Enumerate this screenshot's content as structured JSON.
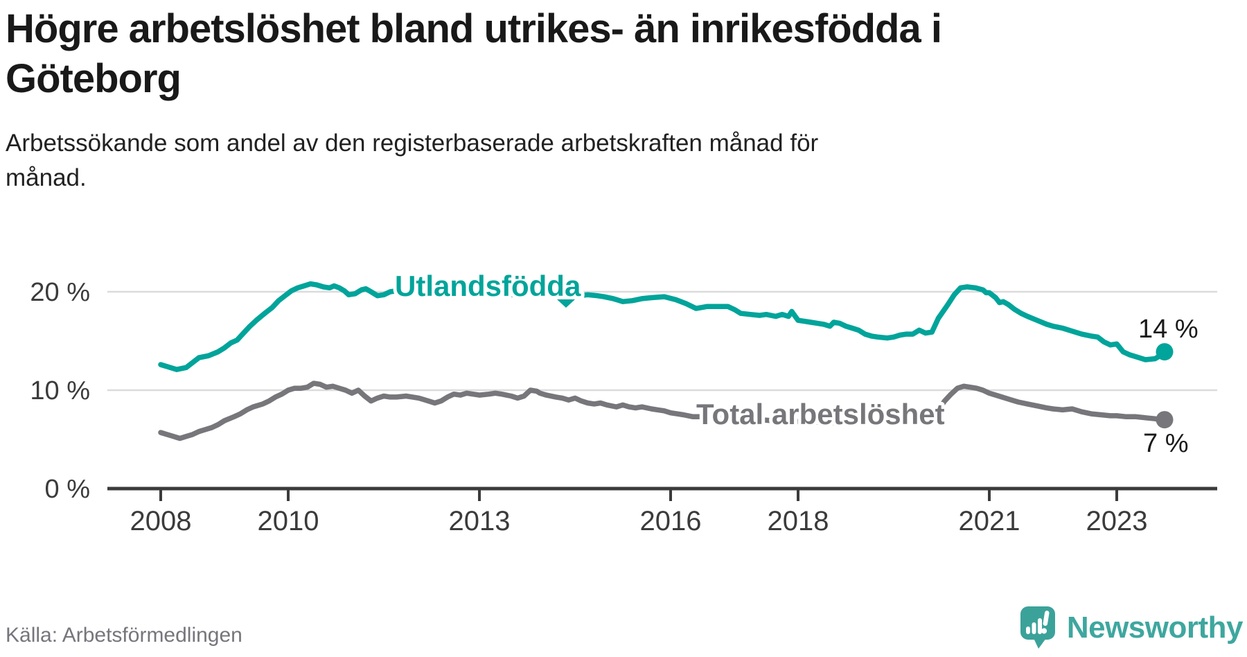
{
  "header": {
    "title_line1": "Högre arbetslöshet bland utrikes- än inrikesfödda i",
    "title_line2": "Göteborg",
    "subtitle_line1": "Arbetssökande som andel av den registerbaserade arbetskraften månad för",
    "subtitle_line2": "månad."
  },
  "footer": {
    "source": "Källa: Arbetsförmedlingen",
    "brand": "Newsworthy"
  },
  "colors": {
    "teal": "#00A49A",
    "gray": "#77767B",
    "grid": "#DBDBDB",
    "axis": "#3B3B3B",
    "brand_teal": "#3EA79F",
    "text": "#191919"
  },
  "chart_data": {
    "type": "line",
    "title": "Högre arbetslöshet bland utrikes- än inrikesfödda i Göteborg",
    "subtitle": "Arbetssökande som andel av den registerbaserade arbetskraften månad för månad.",
    "unit": "%",
    "grid": "horizontal gridlines at 10 and 20",
    "legend_position": "inline labels on lines",
    "xlim": [
      2007.2,
      2024.6
    ],
    "ylim": [
      0,
      22
    ],
    "x_ticks": [
      {
        "value": 2008,
        "label": "2008"
      },
      {
        "value": 2010,
        "label": "2010"
      },
      {
        "value": 2013,
        "label": "2013"
      },
      {
        "value": 2016,
        "label": "2016"
      },
      {
        "value": 2018,
        "label": "2018"
      },
      {
        "value": 2021,
        "label": "2021"
      },
      {
        "value": 2023,
        "label": "2023"
      }
    ],
    "y_ticks": [
      {
        "value": 0,
        "label": "0 %"
      },
      {
        "value": 10,
        "label": "10 %"
      },
      {
        "value": 20,
        "label": "20 %"
      }
    ],
    "series": [
      {
        "name": "Utlandsfödda",
        "color": "#00A49A",
        "end_label": "14 %",
        "end_value": 13.9,
        "points": [
          [
            2008.0,
            12.6
          ],
          [
            2008.1,
            12.4
          ],
          [
            2008.25,
            12.1
          ],
          [
            2008.4,
            12.3
          ],
          [
            2008.5,
            12.8
          ],
          [
            2008.6,
            13.3
          ],
          [
            2008.75,
            13.5
          ],
          [
            2008.9,
            13.9
          ],
          [
            2009.0,
            14.3
          ],
          [
            2009.1,
            14.8
          ],
          [
            2009.2,
            15.1
          ],
          [
            2009.3,
            15.8
          ],
          [
            2009.4,
            16.5
          ],
          [
            2009.5,
            17.1
          ],
          [
            2009.65,
            17.9
          ],
          [
            2009.75,
            18.4
          ],
          [
            2009.85,
            19.1
          ],
          [
            2009.95,
            19.6
          ],
          [
            2010.05,
            20.1
          ],
          [
            2010.15,
            20.4
          ],
          [
            2010.25,
            20.6
          ],
          [
            2010.35,
            20.8
          ],
          [
            2010.45,
            20.7
          ],
          [
            2010.55,
            20.5
          ],
          [
            2010.65,
            20.4
          ],
          [
            2010.72,
            20.6
          ],
          [
            2010.8,
            20.4
          ],
          [
            2010.88,
            20.1
          ],
          [
            2010.95,
            19.7
          ],
          [
            2011.05,
            19.8
          ],
          [
            2011.15,
            20.2
          ],
          [
            2011.22,
            20.3
          ],
          [
            2011.3,
            20.0
          ],
          [
            2011.4,
            19.6
          ],
          [
            2011.5,
            19.7
          ],
          [
            2011.6,
            20.0
          ],
          [
            2011.7,
            20.1
          ],
          [
            2011.8,
            19.9
          ],
          [
            2011.9,
            19.7
          ],
          [
            2012.0,
            19.9
          ],
          [
            2012.1,
            20.1
          ],
          [
            2012.25,
            19.8
          ],
          [
            2012.4,
            19.6
          ],
          [
            2012.5,
            19.8
          ],
          [
            2012.6,
            20.0
          ],
          [
            2012.75,
            19.9
          ],
          [
            2012.9,
            19.7
          ],
          [
            2013.0,
            19.8
          ],
          [
            2013.15,
            20.0
          ],
          [
            2013.3,
            19.9
          ],
          [
            2013.5,
            19.7
          ],
          [
            2013.65,
            19.9
          ],
          [
            2013.8,
            20.0
          ],
          [
            2013.95,
            19.8
          ],
          [
            2014.1,
            19.9
          ],
          [
            2014.25,
            19.7
          ],
          [
            2014.4,
            19.8
          ],
          [
            2014.55,
            19.6
          ],
          [
            2014.7,
            19.7
          ],
          [
            2014.85,
            19.6
          ],
          [
            2014.95,
            19.5
          ],
          [
            2015.1,
            19.3
          ],
          [
            2015.25,
            19.0
          ],
          [
            2015.4,
            19.1
          ],
          [
            2015.55,
            19.3
          ],
          [
            2015.7,
            19.4
          ],
          [
            2015.9,
            19.5
          ],
          [
            2016.08,
            19.2
          ],
          [
            2016.24,
            18.8
          ],
          [
            2016.4,
            18.3
          ],
          [
            2016.57,
            18.5
          ],
          [
            2016.75,
            18.5
          ],
          [
            2016.9,
            18.5
          ],
          [
            2017.0,
            18.2
          ],
          [
            2017.1,
            17.8
          ],
          [
            2017.25,
            17.7
          ],
          [
            2017.4,
            17.6
          ],
          [
            2017.5,
            17.7
          ],
          [
            2017.65,
            17.5
          ],
          [
            2017.75,
            17.7
          ],
          [
            2017.85,
            17.5
          ],
          [
            2017.9,
            18.0
          ],
          [
            2018.0,
            17.1
          ],
          [
            2018.1,
            17.0
          ],
          [
            2018.2,
            16.9
          ],
          [
            2018.3,
            16.8
          ],
          [
            2018.4,
            16.7
          ],
          [
            2018.5,
            16.5
          ],
          [
            2018.56,
            16.9
          ],
          [
            2018.65,
            16.8
          ],
          [
            2018.75,
            16.5
          ],
          [
            2018.85,
            16.3
          ],
          [
            2018.95,
            16.1
          ],
          [
            2019.05,
            15.7
          ],
          [
            2019.15,
            15.5
          ],
          [
            2019.25,
            15.4
          ],
          [
            2019.4,
            15.3
          ],
          [
            2019.5,
            15.4
          ],
          [
            2019.6,
            15.6
          ],
          [
            2019.7,
            15.7
          ],
          [
            2019.8,
            15.7
          ],
          [
            2019.9,
            16.1
          ],
          [
            2020.0,
            15.8
          ],
          [
            2020.1,
            15.9
          ],
          [
            2020.2,
            17.3
          ],
          [
            2020.35,
            18.7
          ],
          [
            2020.45,
            19.7
          ],
          [
            2020.55,
            20.4
          ],
          [
            2020.65,
            20.5
          ],
          [
            2020.78,
            20.4
          ],
          [
            2020.9,
            20.2
          ],
          [
            2020.95,
            19.9
          ],
          [
            2021.0,
            19.9
          ],
          [
            2021.1,
            19.4
          ],
          [
            2021.16,
            18.9
          ],
          [
            2021.22,
            19.0
          ],
          [
            2021.3,
            18.7
          ],
          [
            2021.4,
            18.2
          ],
          [
            2021.5,
            17.8
          ],
          [
            2021.6,
            17.5
          ],
          [
            2021.75,
            17.1
          ],
          [
            2021.9,
            16.7
          ],
          [
            2022.0,
            16.5
          ],
          [
            2022.15,
            16.3
          ],
          [
            2022.3,
            16.0
          ],
          [
            2022.45,
            15.7
          ],
          [
            2022.6,
            15.5
          ],
          [
            2022.7,
            15.4
          ],
          [
            2022.8,
            14.9
          ],
          [
            2022.9,
            14.6
          ],
          [
            2023.0,
            14.7
          ],
          [
            2023.1,
            13.9
          ],
          [
            2023.2,
            13.6
          ],
          [
            2023.3,
            13.4
          ],
          [
            2023.45,
            13.1
          ],
          [
            2023.6,
            13.2
          ],
          [
            2023.68,
            13.5
          ],
          [
            2023.75,
            13.9
          ]
        ]
      },
      {
        "name": "Total arbetslöshet",
        "color": "#77767B",
        "end_label": "7 %",
        "end_value": 7.0,
        "points": [
          [
            2008.0,
            5.7
          ],
          [
            2008.1,
            5.5
          ],
          [
            2008.2,
            5.3
          ],
          [
            2008.3,
            5.1
          ],
          [
            2008.4,
            5.3
          ],
          [
            2008.5,
            5.5
          ],
          [
            2008.6,
            5.8
          ],
          [
            2008.7,
            6.0
          ],
          [
            2008.8,
            6.2
          ],
          [
            2008.9,
            6.5
          ],
          [
            2009.0,
            6.9
          ],
          [
            2009.15,
            7.3
          ],
          [
            2009.25,
            7.6
          ],
          [
            2009.35,
            8.0
          ],
          [
            2009.45,
            8.3
          ],
          [
            2009.6,
            8.6
          ],
          [
            2009.7,
            8.9
          ],
          [
            2009.8,
            9.3
          ],
          [
            2009.9,
            9.6
          ],
          [
            2010.0,
            10.0
          ],
          [
            2010.1,
            10.2
          ],
          [
            2010.2,
            10.2
          ],
          [
            2010.3,
            10.3
          ],
          [
            2010.4,
            10.7
          ],
          [
            2010.5,
            10.6
          ],
          [
            2010.6,
            10.3
          ],
          [
            2010.7,
            10.4
          ],
          [
            2010.8,
            10.2
          ],
          [
            2010.9,
            10.0
          ],
          [
            2011.0,
            9.7
          ],
          [
            2011.1,
            10.0
          ],
          [
            2011.2,
            9.4
          ],
          [
            2011.3,
            8.9
          ],
          [
            2011.4,
            9.2
          ],
          [
            2011.5,
            9.4
          ],
          [
            2011.6,
            9.3
          ],
          [
            2011.7,
            9.3
          ],
          [
            2011.85,
            9.4
          ],
          [
            2011.95,
            9.3
          ],
          [
            2012.05,
            9.2
          ],
          [
            2012.15,
            9.0
          ],
          [
            2012.3,
            8.7
          ],
          [
            2012.4,
            8.9
          ],
          [
            2012.5,
            9.3
          ],
          [
            2012.6,
            9.6
          ],
          [
            2012.7,
            9.5
          ],
          [
            2012.8,
            9.7
          ],
          [
            2012.9,
            9.6
          ],
          [
            2013.0,
            9.5
          ],
          [
            2013.15,
            9.6
          ],
          [
            2013.25,
            9.7
          ],
          [
            2013.35,
            9.6
          ],
          [
            2013.5,
            9.4
          ],
          [
            2013.6,
            9.2
          ],
          [
            2013.7,
            9.4
          ],
          [
            2013.8,
            10.0
          ],
          [
            2013.9,
            9.9
          ],
          [
            2013.95,
            9.7
          ],
          [
            2014.05,
            9.5
          ],
          [
            2014.2,
            9.3
          ],
          [
            2014.3,
            9.2
          ],
          [
            2014.4,
            9.0
          ],
          [
            2014.5,
            9.2
          ],
          [
            2014.6,
            8.9
          ],
          [
            2014.7,
            8.7
          ],
          [
            2014.8,
            8.6
          ],
          [
            2014.9,
            8.7
          ],
          [
            2015.0,
            8.5
          ],
          [
            2015.15,
            8.3
          ],
          [
            2015.25,
            8.5
          ],
          [
            2015.35,
            8.3
          ],
          [
            2015.45,
            8.2
          ],
          [
            2015.55,
            8.3
          ],
          [
            2015.7,
            8.1
          ],
          [
            2015.8,
            8.0
          ],
          [
            2015.9,
            7.9
          ],
          [
            2016.0,
            7.7
          ],
          [
            2016.1,
            7.6
          ],
          [
            2016.2,
            7.5
          ],
          [
            2016.35,
            7.3
          ],
          [
            2016.5,
            7.3
          ],
          [
            2016.65,
            7.2
          ],
          [
            2016.8,
            7.2
          ],
          [
            2017.0,
            7.1
          ],
          [
            2017.2,
            7.0
          ],
          [
            2017.4,
            7.0
          ],
          [
            2017.6,
            6.9
          ],
          [
            2017.8,
            6.9
          ],
          [
            2018.0,
            6.8
          ],
          [
            2018.2,
            6.8
          ],
          [
            2018.4,
            6.7
          ],
          [
            2018.6,
            6.7
          ],
          [
            2018.8,
            6.8
          ],
          [
            2019.0,
            6.8
          ],
          [
            2019.2,
            6.9
          ],
          [
            2019.4,
            6.9
          ],
          [
            2019.6,
            7.0
          ],
          [
            2019.8,
            7.0
          ],
          [
            2020.0,
            7.1
          ],
          [
            2020.1,
            7.3
          ],
          [
            2020.2,
            8.0
          ],
          [
            2020.3,
            8.9
          ],
          [
            2020.4,
            9.6
          ],
          [
            2020.5,
            10.2
          ],
          [
            2020.6,
            10.4
          ],
          [
            2020.7,
            10.3
          ],
          [
            2020.8,
            10.2
          ],
          [
            2020.9,
            10.0
          ],
          [
            2021.0,
            9.7
          ],
          [
            2021.15,
            9.4
          ],
          [
            2021.3,
            9.1
          ],
          [
            2021.45,
            8.8
          ],
          [
            2021.6,
            8.6
          ],
          [
            2021.75,
            8.4
          ],
          [
            2021.9,
            8.2
          ],
          [
            2022.0,
            8.1
          ],
          [
            2022.15,
            8.0
          ],
          [
            2022.3,
            8.1
          ],
          [
            2022.45,
            7.8
          ],
          [
            2022.6,
            7.6
          ],
          [
            2022.75,
            7.5
          ],
          [
            2022.9,
            7.4
          ],
          [
            2023.0,
            7.4
          ],
          [
            2023.15,
            7.3
          ],
          [
            2023.3,
            7.3
          ],
          [
            2023.45,
            7.2
          ],
          [
            2023.6,
            7.1
          ],
          [
            2023.68,
            7.0
          ],
          [
            2023.75,
            7.0
          ]
        ]
      }
    ]
  }
}
